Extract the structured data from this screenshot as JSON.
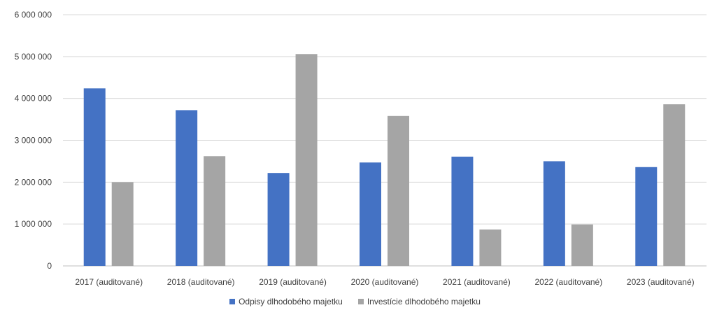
{
  "chart_data": {
    "type": "bar",
    "categories": [
      "2017 (auditované)",
      "2018 (auditované)",
      "2019 (auditované)",
      "2020 (auditované)",
      "2021 (auditované)",
      "2022 (auditované)",
      "2023 (auditované)"
    ],
    "series": [
      {
        "name": "Odpisy dlhodobého majetku",
        "color": "#4472C4",
        "values": [
          4240000,
          3720000,
          2220000,
          2470000,
          2610000,
          2500000,
          2360000
        ]
      },
      {
        "name": "Investície dlhodobého majetku",
        "color": "#A5A5A5",
        "values": [
          2000000,
          2620000,
          5060000,
          3580000,
          870000,
          990000,
          3860000
        ]
      }
    ],
    "yticks": [
      "0",
      "1 000 000",
      "2 000 000",
      "3 000 000",
      "4 000 000",
      "5 000 000",
      "6 000 000"
    ],
    "ylim": [
      0,
      6000000
    ],
    "grid": true,
    "legend_position": "bottom"
  }
}
